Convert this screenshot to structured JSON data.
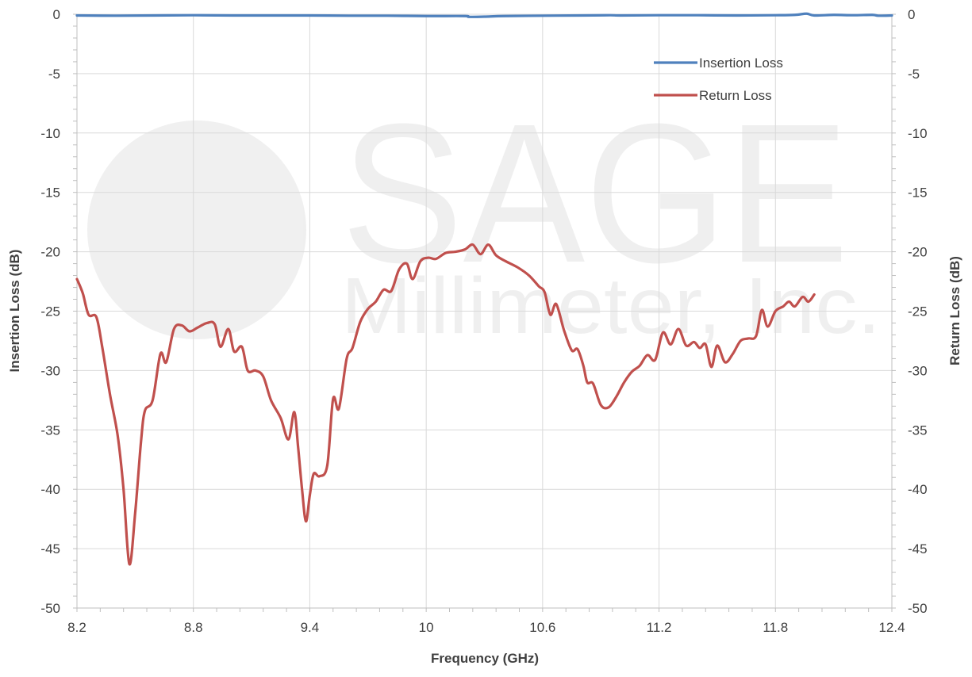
{
  "watermark": {
    "company": "SAGE",
    "subtitle": "Millimeter, Inc."
  },
  "chart_data": {
    "type": "line",
    "title": "",
    "xlabel": "Frequency (GHz)",
    "ylabel_left": "Insertion Loss (dB)",
    "ylabel_right": "Return Loss (dB)",
    "xlim": [
      8.2,
      12.4
    ],
    "ylim": [
      -50,
      0
    ],
    "x_ticks": [
      "8.2",
      "8.8",
      "9.4",
      "10",
      "10.6",
      "11.2",
      "11.8",
      "12.4"
    ],
    "x_tick_values": [
      8.2,
      8.8,
      9.4,
      10.0,
      10.6,
      11.2,
      11.8,
      12.4
    ],
    "y_ticks": [
      "0",
      "-5",
      "-10",
      "-15",
      "-20",
      "-25",
      "-30",
      "-35",
      "-40",
      "-45",
      "-50"
    ],
    "y_tick_values": [
      0,
      -5,
      -10,
      -15,
      -20,
      -25,
      -30,
      -35,
      -40,
      -45,
      -50
    ],
    "grid": true,
    "legend_position": "top-right",
    "series": [
      {
        "name": "Insertion Loss",
        "color": "#4f81bd",
        "axis": "left",
        "points": [
          [
            8.2,
            -0.1
          ],
          [
            8.4,
            -0.12
          ],
          [
            8.6,
            -0.1
          ],
          [
            8.8,
            -0.08
          ],
          [
            9.0,
            -0.1
          ],
          [
            9.2,
            -0.1
          ],
          [
            9.4,
            -0.1
          ],
          [
            9.6,
            -0.12
          ],
          [
            9.8,
            -0.12
          ],
          [
            10.0,
            -0.15
          ],
          [
            10.2,
            -0.15
          ],
          [
            10.22,
            -0.22
          ],
          [
            10.3,
            -0.2
          ],
          [
            10.4,
            -0.15
          ],
          [
            10.6,
            -0.12
          ],
          [
            10.8,
            -0.1
          ],
          [
            10.95,
            -0.08
          ],
          [
            11.0,
            -0.1
          ],
          [
            11.2,
            -0.08
          ],
          [
            11.4,
            -0.08
          ],
          [
            11.6,
            -0.1
          ],
          [
            11.8,
            -0.08
          ],
          [
            11.9,
            -0.05
          ],
          [
            11.96,
            0.05
          ],
          [
            12.0,
            -0.1
          ],
          [
            12.1,
            -0.05
          ],
          [
            12.2,
            -0.08
          ],
          [
            12.3,
            -0.05
          ],
          [
            12.33,
            -0.12
          ],
          [
            12.4,
            -0.1
          ]
        ]
      },
      {
        "name": "Return Loss",
        "color": "#c0504d",
        "axis": "right",
        "points": [
          [
            8.2,
            -22.3
          ],
          [
            8.23,
            -23.5
          ],
          [
            8.26,
            -25.3
          ],
          [
            8.3,
            -25.5
          ],
          [
            8.33,
            -28.0
          ],
          [
            8.37,
            -32.0
          ],
          [
            8.41,
            -35.5
          ],
          [
            8.44,
            -40.0
          ],
          [
            8.47,
            -46.3
          ],
          [
            8.5,
            -42.0
          ],
          [
            8.53,
            -36.0
          ],
          [
            8.55,
            -33.4
          ],
          [
            8.59,
            -32.5
          ],
          [
            8.63,
            -28.6
          ],
          [
            8.66,
            -29.3
          ],
          [
            8.7,
            -26.5
          ],
          [
            8.74,
            -26.2
          ],
          [
            8.78,
            -26.7
          ],
          [
            8.82,
            -26.4
          ],
          [
            8.87,
            -26.0
          ],
          [
            8.91,
            -26.1
          ],
          [
            8.94,
            -28.0
          ],
          [
            8.98,
            -26.5
          ],
          [
            9.01,
            -28.4
          ],
          [
            9.05,
            -28.0
          ],
          [
            9.08,
            -30.0
          ],
          [
            9.12,
            -30.0
          ],
          [
            9.16,
            -30.5
          ],
          [
            9.2,
            -32.5
          ],
          [
            9.25,
            -34.0
          ],
          [
            9.29,
            -35.8
          ],
          [
            9.32,
            -33.5
          ],
          [
            9.34,
            -36.5
          ],
          [
            9.36,
            -40.0
          ],
          [
            9.38,
            -42.7
          ],
          [
            9.4,
            -40.5
          ],
          [
            9.42,
            -38.7
          ],
          [
            9.45,
            -38.9
          ],
          [
            9.49,
            -38.0
          ],
          [
            9.52,
            -32.4
          ],
          [
            9.55,
            -33.2
          ],
          [
            9.59,
            -29.0
          ],
          [
            9.62,
            -28.1
          ],
          [
            9.66,
            -25.9
          ],
          [
            9.7,
            -24.8
          ],
          [
            9.74,
            -24.2
          ],
          [
            9.78,
            -23.2
          ],
          [
            9.82,
            -23.3
          ],
          [
            9.86,
            -21.5
          ],
          [
            9.9,
            -21.0
          ],
          [
            9.93,
            -22.3
          ],
          [
            9.97,
            -20.8
          ],
          [
            10.01,
            -20.5
          ],
          [
            10.05,
            -20.6
          ],
          [
            10.1,
            -20.1
          ],
          [
            10.15,
            -20.0
          ],
          [
            10.2,
            -19.8
          ],
          [
            10.24,
            -19.4
          ],
          [
            10.28,
            -20.2
          ],
          [
            10.32,
            -19.4
          ],
          [
            10.36,
            -20.3
          ],
          [
            10.41,
            -20.8
          ],
          [
            10.47,
            -21.3
          ],
          [
            10.53,
            -22.0
          ],
          [
            10.58,
            -22.9
          ],
          [
            10.61,
            -23.4
          ],
          [
            10.64,
            -25.3
          ],
          [
            10.67,
            -24.4
          ],
          [
            10.71,
            -26.6
          ],
          [
            10.75,
            -28.3
          ],
          [
            10.78,
            -28.2
          ],
          [
            10.81,
            -29.6
          ],
          [
            10.83,
            -31.0
          ],
          [
            10.86,
            -31.1
          ],
          [
            10.9,
            -32.9
          ],
          [
            10.94,
            -33.1
          ],
          [
            10.98,
            -32.2
          ],
          [
            11.02,
            -31.0
          ],
          [
            11.06,
            -30.1
          ],
          [
            11.1,
            -29.6
          ],
          [
            11.14,
            -28.7
          ],
          [
            11.18,
            -29.1
          ],
          [
            11.22,
            -26.8
          ],
          [
            11.26,
            -27.8
          ],
          [
            11.3,
            -26.5
          ],
          [
            11.34,
            -27.9
          ],
          [
            11.38,
            -27.6
          ],
          [
            11.41,
            -28.1
          ],
          [
            11.44,
            -27.8
          ],
          [
            11.47,
            -29.7
          ],
          [
            11.5,
            -27.9
          ],
          [
            11.54,
            -29.3
          ],
          [
            11.58,
            -28.6
          ],
          [
            11.62,
            -27.5
          ],
          [
            11.66,
            -27.3
          ],
          [
            11.7,
            -27.1
          ],
          [
            11.73,
            -24.9
          ],
          [
            11.76,
            -26.3
          ],
          [
            11.8,
            -25.0
          ],
          [
            11.84,
            -24.6
          ],
          [
            11.87,
            -24.2
          ],
          [
            11.9,
            -24.6
          ],
          [
            11.94,
            -23.8
          ],
          [
            11.97,
            -24.2
          ],
          [
            12.0,
            -23.6
          ]
        ]
      }
    ]
  }
}
